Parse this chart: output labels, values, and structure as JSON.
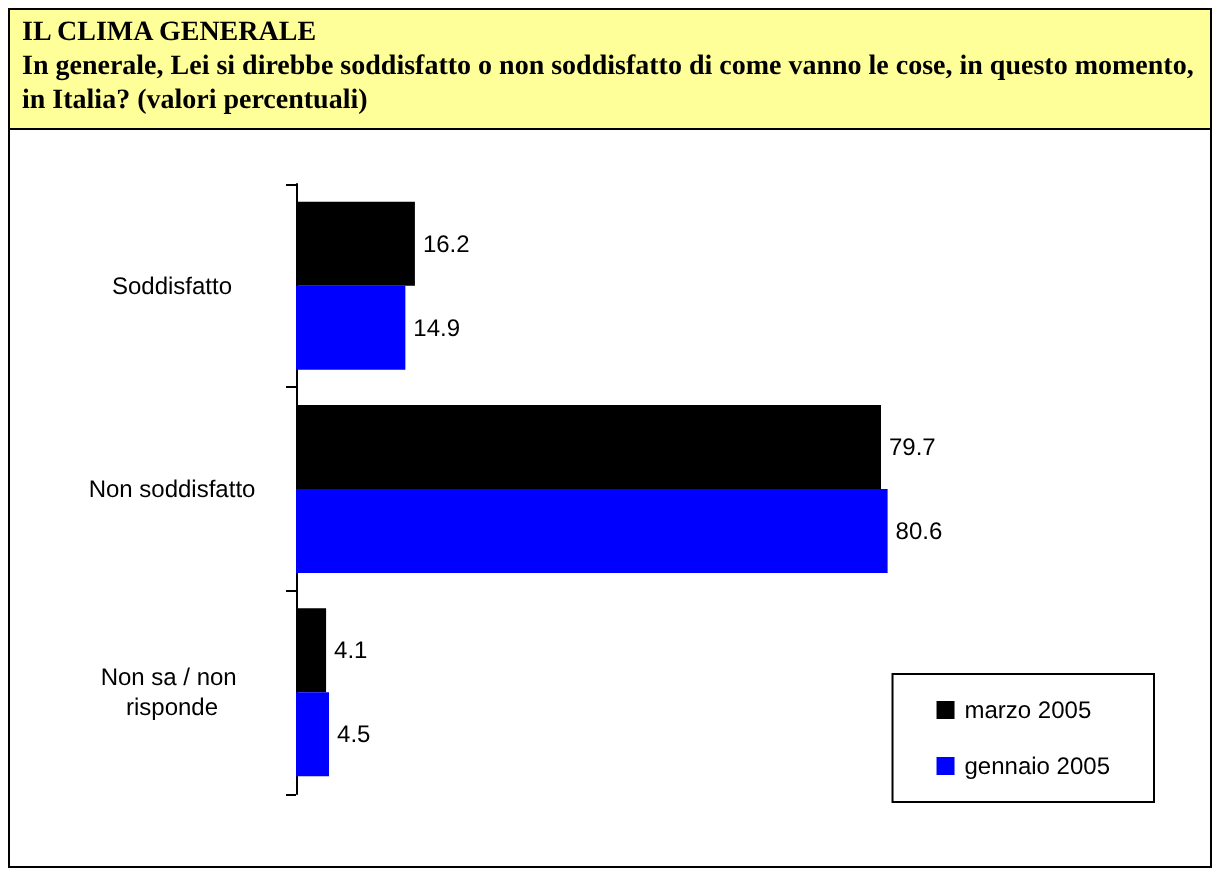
{
  "chart_data": {
    "type": "bar",
    "orientation": "horizontal",
    "title": "IL CLIMA GENERALE",
    "subtitle": "In generale, Lei si direbbe soddisfatto o non soddisfatto di come vanno le cose, in questo momento, in Italia? (valori percentuali)",
    "categories": [
      "Soddisfatto",
      "Non soddisfatto",
      "Non sa / non risponde"
    ],
    "series": [
      {
        "name": "marzo 2005",
        "color": "#000000",
        "values": [
          16.2,
          79.7,
          4.1
        ]
      },
      {
        "name": "gennaio 2005",
        "color": "#0000ff",
        "values": [
          14.9,
          80.6,
          4.5
        ]
      }
    ],
    "data_labels": true,
    "legend": "bottom right"
  }
}
